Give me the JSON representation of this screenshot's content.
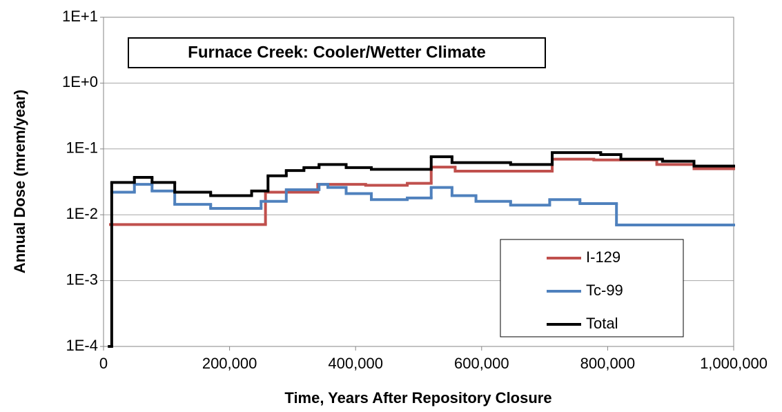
{
  "chart_data": {
    "type": "step-line",
    "step": "post",
    "log_y": true,
    "grid": true,
    "title": "Furnace Creek:  Cooler/Wetter Climate",
    "xlabel": "Time, Years After Repository Closure",
    "ylabel": "Annual Dose (mrem/year)",
    "xlim": [
      0,
      1000000
    ],
    "xticks": [
      0,
      {
        "value": 200000,
        "label": "200,000"
      },
      {
        "value": 400000,
        "label": "400,000"
      },
      {
        "value": 600000,
        "label": "600,000"
      },
      {
        "value": 800000,
        "label": "800,000"
      },
      {
        "value": 1000000,
        "label": "1,000,000"
      }
    ],
    "ylim": [
      0.0001,
      10
    ],
    "yticks": [
      {
        "value": 10,
        "label": "1E+1"
      },
      {
        "value": 1,
        "label": "1E+0"
      },
      {
        "value": 0.1,
        "label": "1E-1"
      },
      {
        "value": 0.01,
        "label": "1E-2"
      },
      {
        "value": 0.001,
        "label": "1E-3"
      },
      {
        "value": 0.0001,
        "label": "1E-4"
      }
    ],
    "legend": "lower-right",
    "series": [
      {
        "name": "I-129",
        "color": "#c0504d",
        "x": [
          11000,
          257000,
          340000,
          416000,
          482000,
          520000,
          558000,
          712000,
          778000,
          878000,
          937000
        ],
        "values": [
          0.0071,
          0.022,
          0.029,
          0.028,
          0.03,
          0.053,
          0.046,
          0.07,
          0.068,
          0.058,
          0.05
        ]
      },
      {
        "name": "Tc-99",
        "color": "#4f81bd",
        "x": [
          13000,
          49000,
          77000,
          113000,
          170000,
          250000,
          290000,
          342000,
          356000,
          385000,
          425000,
          482000,
          520000,
          553000,
          591000,
          646000,
          708000,
          756000,
          814000
        ],
        "values": [
          0.022,
          0.029,
          0.023,
          0.0144,
          0.0125,
          0.016,
          0.024,
          0.029,
          0.026,
          0.021,
          0.017,
          0.018,
          0.026,
          0.0195,
          0.016,
          0.014,
          0.017,
          0.0148,
          0.007
        ]
      },
      {
        "name": "Total",
        "color": "#000000",
        "x": [
          9000,
          13000,
          49000,
          77000,
          113000,
          170000,
          235000,
          261000,
          290000,
          318000,
          342000,
          385000,
          425000,
          520000,
          553000,
          646000,
          712000,
          789000,
          821000,
          887000,
          937000
        ],
        "values": [
          0.0001,
          0.031,
          0.037,
          0.031,
          0.022,
          0.0195,
          0.023,
          0.039,
          0.047,
          0.052,
          0.058,
          0.052,
          0.049,
          0.076,
          0.062,
          0.058,
          0.088,
          0.082,
          0.07,
          0.065,
          0.055
        ]
      }
    ]
  }
}
